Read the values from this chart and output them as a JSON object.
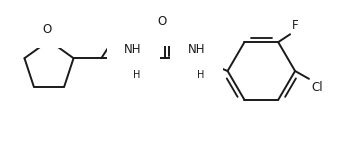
{
  "background_color": "#ffffff",
  "line_color": "#1a1a1a",
  "line_width": 1.4,
  "font_size": 8.5,
  "figsize": [
    3.56,
    1.42
  ],
  "dpi": 100,
  "ring_O_label": "O",
  "nh1_label": "NH",
  "nh2_label": "NH",
  "o_urea_label": "O",
  "cl_label": "Cl",
  "f_label": "F"
}
